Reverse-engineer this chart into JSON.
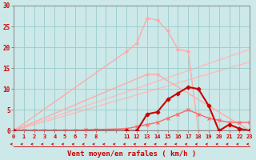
{
  "xlabel": "Vent moyen/en rafales ( km/h )",
  "background_color": "#cce8e8",
  "grid_color": "#99cccc",
  "xlim": [
    0,
    23
  ],
  "ylim": [
    0,
    30
  ],
  "yticks": [
    0,
    5,
    10,
    15,
    20,
    25,
    30
  ],
  "xtick_labels": [
    "0",
    "1",
    "2",
    "3",
    "4",
    "5",
    "6",
    "7",
    "8",
    "",
    "",
    "11",
    "12",
    "13",
    "14",
    "15",
    "16",
    "17",
    "18",
    "19",
    "20",
    "21",
    "22",
    "23"
  ],
  "lines": [
    {
      "x": [
        0,
        11,
        12,
        13,
        14,
        15,
        16,
        17,
        18,
        23
      ],
      "y": [
        0,
        19,
        21,
        27,
        26.5,
        24,
        19.5,
        19,
        0,
        0
      ],
      "color": "#ffaaaa",
      "lw": 1.0,
      "marker": "D",
      "ms": 2.0,
      "zorder": 2
    },
    {
      "x": [
        0,
        13,
        14,
        23
      ],
      "y": [
        0,
        13.5,
        13.5,
        0
      ],
      "color": "#ffaaaa",
      "lw": 1.0,
      "marker": "D",
      "ms": 2.0,
      "zorder": 2
    },
    {
      "x": [
        0,
        23
      ],
      "y": [
        0,
        19.5
      ],
      "color": "#ffbbbb",
      "lw": 1.0,
      "marker": null,
      "ms": 0,
      "zorder": 1
    },
    {
      "x": [
        0,
        23
      ],
      "y": [
        0,
        16.5
      ],
      "color": "#ffbbbb",
      "lw": 1.0,
      "marker": null,
      "ms": 0,
      "zorder": 1
    },
    {
      "x": [
        0,
        1,
        2,
        3,
        4,
        5,
        6,
        7,
        8,
        11,
        12,
        13,
        14,
        15,
        16,
        17,
        18,
        19,
        20,
        21,
        22,
        23
      ],
      "y": [
        0,
        0,
        0,
        0,
        0,
        0,
        0,
        0.2,
        0.3,
        0.5,
        1.0,
        1.5,
        2.0,
        3.0,
        4.0,
        5.0,
        4.0,
        3.0,
        2.5,
        2.0,
        2.0,
        2.0
      ],
      "color": "#ff6666",
      "lw": 1.0,
      "marker": "x",
      "ms": 3.0,
      "zorder": 3
    },
    {
      "x": [
        0,
        11,
        12,
        13,
        14,
        15,
        16,
        17,
        18,
        19,
        20,
        21,
        22,
        23
      ],
      "y": [
        0,
        0,
        0,
        4.0,
        4.5,
        7.5,
        9.0,
        10.5,
        10.0,
        6.0,
        0,
        1.5,
        0.5,
        0
      ],
      "color": "#cc0000",
      "lw": 1.5,
      "marker": "D",
      "ms": 2.5,
      "zorder": 4
    }
  ],
  "xlabel_color": "#cc0000",
  "tick_color": "#cc0000",
  "spine_color": "#888888",
  "arrow_color": "#cc0000"
}
